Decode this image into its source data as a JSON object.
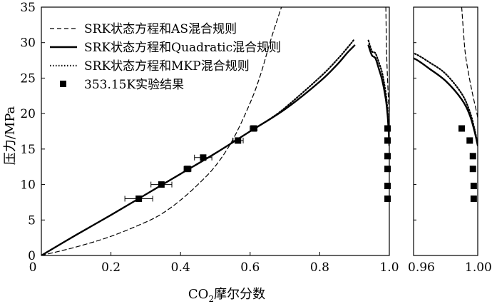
{
  "chart_data": {
    "type": "line",
    "xlabel_main": "CO",
    "xlabel_sub": "2",
    "xlabel_rest": "摩尔分数",
    "ylabel": "压力/MPa",
    "main_panel": {
      "xlim": [
        0,
        1.0
      ],
      "ylim": [
        0,
        35
      ]
    },
    "zoom_panel": {
      "xlim": [
        0.96,
        1.0
      ],
      "ylim": [
        0,
        35
      ]
    },
    "x_ticks_main": [
      "0",
      "0.2",
      "0.4",
      "0.6",
      "0.8",
      "1.0"
    ],
    "x_ticks_zoom": [
      "0.96",
      "1.00"
    ],
    "y_ticks": [
      "0",
      "5",
      "10",
      "15",
      "20",
      "25",
      "30",
      "35"
    ],
    "legend": {
      "placement": "top-left",
      "entries": [
        "SRK状态方程和AS混合规则",
        "SRK状态方程和Quadratic混合规则",
        "SRK状态方程和MKP混合规则",
        "353.15K实验结果"
      ]
    },
    "series": [
      {
        "style": "dashed",
        "bubble": [
          [
            0,
            0
          ],
          [
            0.1,
            1.2
          ],
          [
            0.2,
            2.7
          ],
          [
            0.3,
            4.7
          ],
          [
            0.35,
            6.0
          ],
          [
            0.4,
            7.8
          ],
          [
            0.45,
            10.0
          ],
          [
            0.5,
            12.6
          ],
          [
            0.55,
            16.3
          ],
          [
            0.6,
            21.5
          ],
          [
            0.63,
            25.5
          ],
          [
            0.66,
            30.5
          ],
          [
            0.69,
            35
          ]
        ],
        "dew": [
          [
            0.99,
            35
          ],
          [
            0.992,
            29
          ],
          [
            0.994,
            26
          ],
          [
            0.996,
            23.6
          ],
          [
            0.998,
            21.5
          ],
          [
            0.9995,
            20
          ],
          [
            1.0,
            19.4
          ]
        ]
      },
      {
        "style": "solid",
        "bubble": [
          [
            0,
            0
          ],
          [
            0.1,
            2.9
          ],
          [
            0.2,
            5.7
          ],
          [
            0.3,
            8.6
          ],
          [
            0.4,
            11.5
          ],
          [
            0.5,
            14.4
          ],
          [
            0.6,
            17.5
          ],
          [
            0.7,
            20.6
          ],
          [
            0.8,
            24.5
          ],
          [
            0.85,
            26.9
          ],
          [
            0.88,
            28.6
          ],
          [
            0.9,
            29.6
          ]
        ],
        "dew": [
          [
            0.94,
            29.6
          ],
          [
            0.95,
            28.2
          ],
          [
            0.96,
            27.8
          ],
          [
            0.97,
            26.3
          ],
          [
            0.98,
            24.6
          ],
          [
            0.99,
            22.0
          ],
          [
            0.995,
            19.8
          ],
          [
            0.998,
            17.5
          ],
          [
            1.0,
            15.5
          ]
        ]
      },
      {
        "style": "dotted",
        "bubble": [
          [
            0.65,
            19.0
          ],
          [
            0.7,
            20.8
          ],
          [
            0.8,
            25.1
          ],
          [
            0.85,
            27.6
          ],
          [
            0.88,
            29.3
          ],
          [
            0.9,
            30.5
          ]
        ],
        "dew": [
          [
            0.94,
            30.3
          ],
          [
            0.95,
            28.8
          ],
          [
            0.96,
            28.5
          ],
          [
            0.97,
            27.2
          ],
          [
            0.98,
            25.6
          ],
          [
            0.99,
            22.8
          ],
          [
            0.995,
            20.3
          ],
          [
            0.998,
            17.8
          ],
          [
            1.0,
            15.7
          ]
        ]
      }
    ],
    "experimental": {
      "bubble": [
        {
          "x": 0.28,
          "y": 8.0,
          "xerr": 0.04
        },
        {
          "x": 0.345,
          "y": 10.0,
          "xerr": 0.03
        },
        {
          "x": 0.42,
          "y": 12.2,
          "xerr": 0.01
        },
        {
          "x": 0.465,
          "y": 13.8,
          "xerr": 0.025
        },
        {
          "x": 0.565,
          "y": 16.2,
          "xerr": 0.015
        },
        {
          "x": 0.61,
          "y": 17.9,
          "xerr": 0.01
        }
      ],
      "dew": [
        {
          "x": 0.9975,
          "y": 8.0
        },
        {
          "x": 0.9975,
          "y": 9.8
        },
        {
          "x": 0.997,
          "y": 12.2
        },
        {
          "x": 0.997,
          "y": 14.0
        },
        {
          "x": 0.995,
          "y": 16.2,
          "xerr": 0.001
        },
        {
          "x": 0.99,
          "y": 17.9,
          "xerr": 0.001
        }
      ]
    }
  }
}
